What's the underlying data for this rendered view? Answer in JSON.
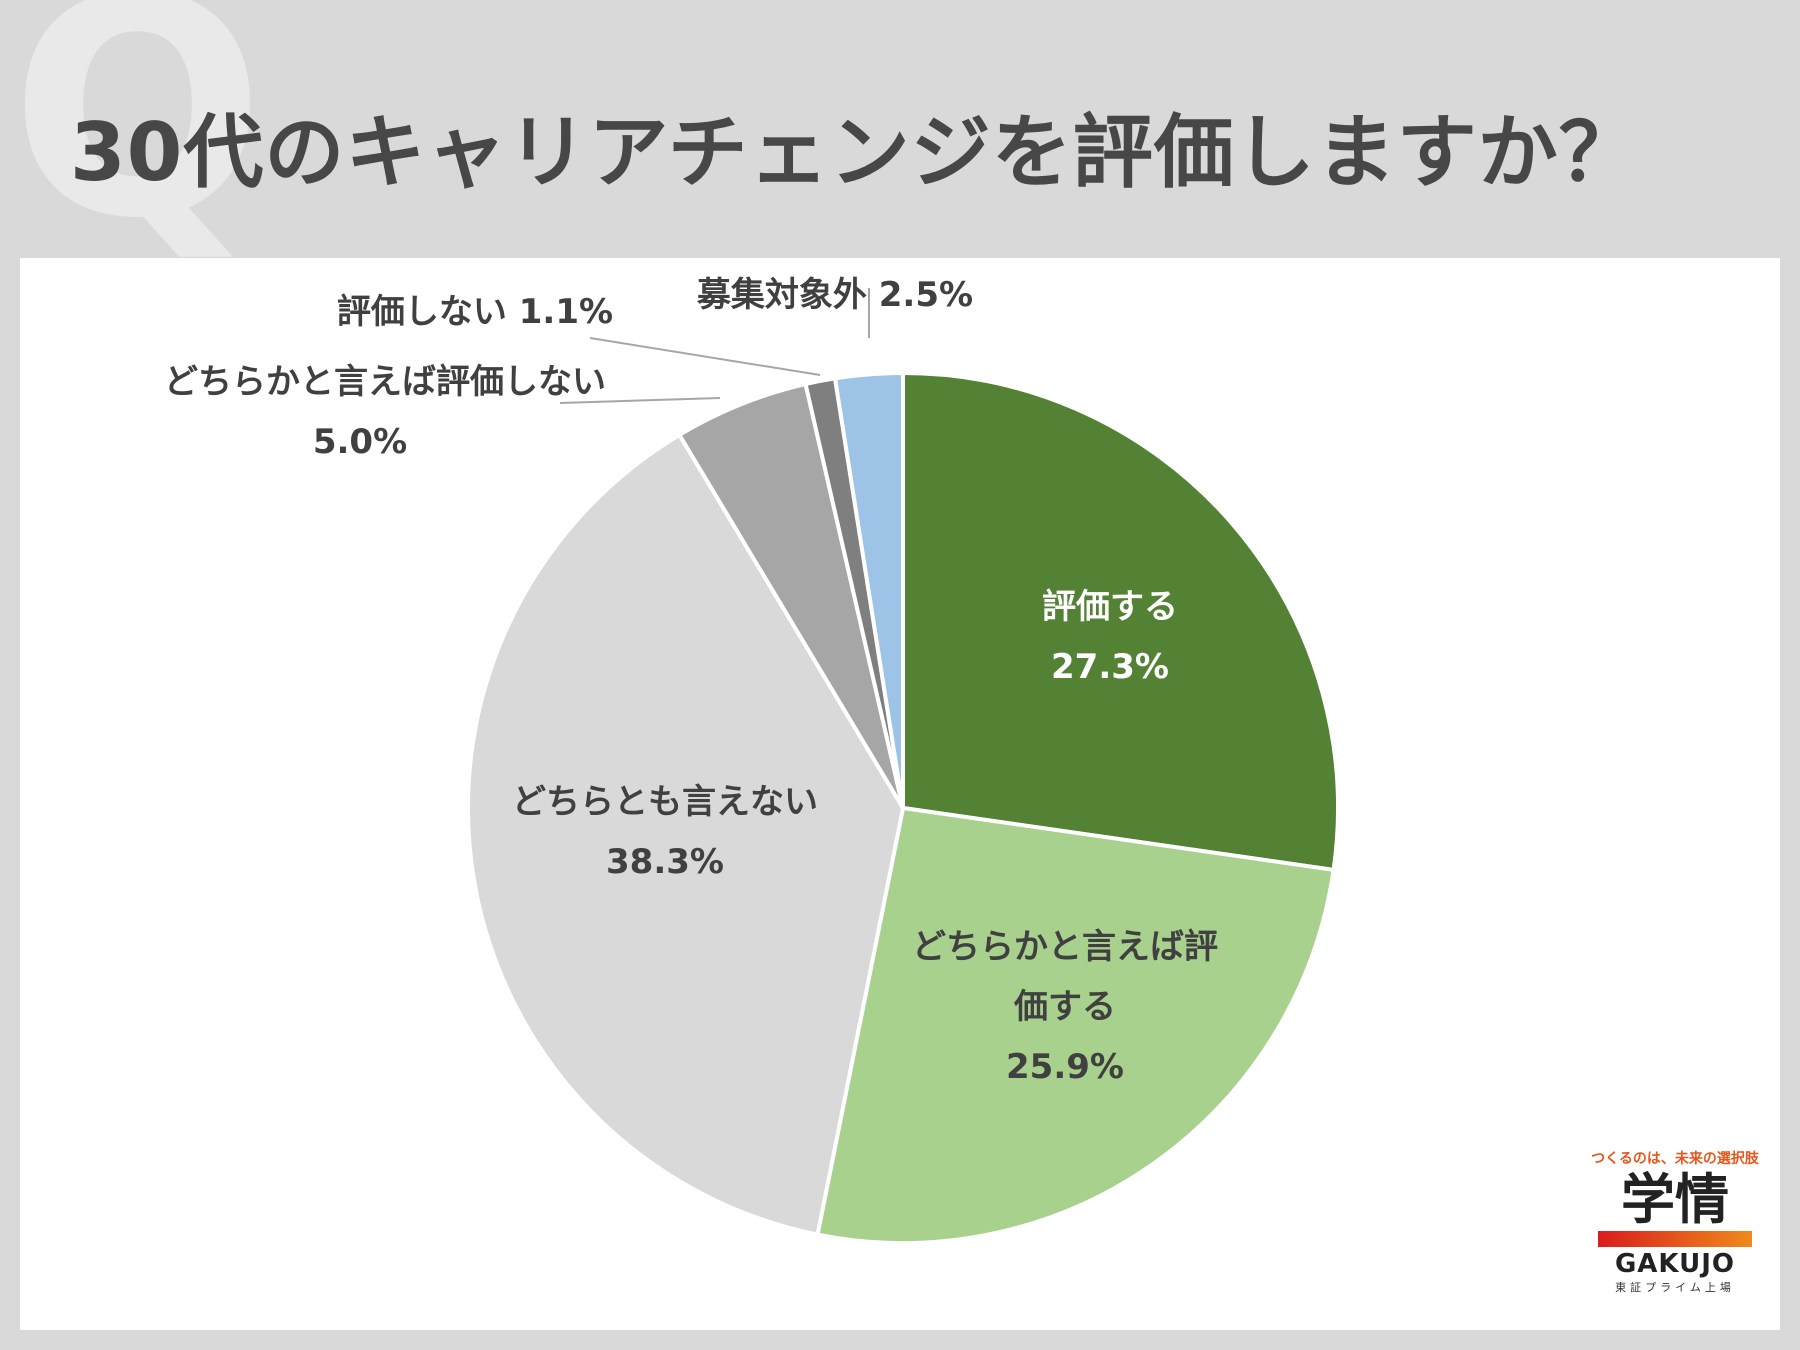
{
  "page": {
    "title": "30代のキャリアチェンジを評価しますか？",
    "q_mark": "Q"
  },
  "chart_data": {
    "type": "pie",
    "start_angle_deg": 0,
    "direction": "clockwise",
    "slices": [
      {
        "label": "評価する",
        "value": 27.3,
        "value_text": "27.3%",
        "color": "#548235",
        "label_color": "#ffffff"
      },
      {
        "label": "どちらかと言えば評価する",
        "value": 25.9,
        "value_text": "25.9%",
        "color": "#a9d18e",
        "label_color": "#404040"
      },
      {
        "label": "どちらとも言えない",
        "value": 38.3,
        "value_text": "38.3%",
        "color": "#d9d9d9",
        "label_color": "#404040"
      },
      {
        "label": "どちらかと言えば評価しない",
        "value": 5.0,
        "value_text": "5.0%",
        "color": "#a6a6a6",
        "label_color": "#404040"
      },
      {
        "label": "評価しない",
        "value": 1.1,
        "value_text": "1.1%",
        "color": "#7f7f7f",
        "label_color": "#404040"
      },
      {
        "label": "募集対象外",
        "value": 2.5,
        "value_text": "2.5%",
        "color": "#9dc3e6",
        "label_color": "#404040"
      }
    ]
  },
  "logo": {
    "tagline": "つくるのは、未来の選択肢",
    "kanji": "学情",
    "english": "GAKUJO",
    "sub": "東証プライム上場"
  }
}
